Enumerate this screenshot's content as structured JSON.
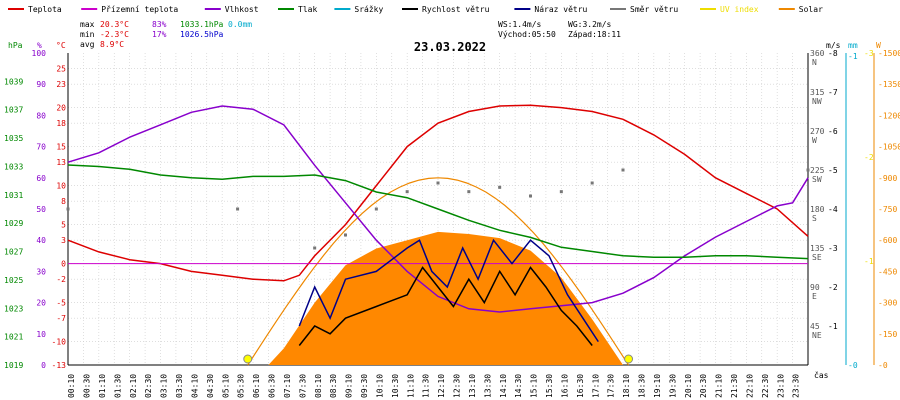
{
  "legend": [
    {
      "label": "Teplota",
      "color": "#dd0000"
    },
    {
      "label": "Přízemní teplota",
      "color": "#cc00cc"
    },
    {
      "label": "Vlhkost",
      "color": "#8800cc"
    },
    {
      "label": "Tlak",
      "color": "#008800"
    },
    {
      "label": "Srážky",
      "color": "#00aacc"
    },
    {
      "label": "Rychlost větru",
      "color": "#000000"
    },
    {
      "label": "Náraz větru",
      "color": "#000088"
    },
    {
      "label": "Směr větru",
      "color": "#777777"
    },
    {
      "label": "UV index",
      "color": "#eedd00"
    },
    {
      "label": "Solar",
      "color": "#ee8800"
    }
  ],
  "stats": {
    "max_label": "max",
    "max_temp": "20.3°C",
    "max_hum": "83%",
    "max_press": "1033.1hPa",
    "max_rain": "0.0mm",
    "min_label": "min",
    "min_temp": "-2.3°C",
    "min_hum": "17%",
    "min_press": "1026.5hPa",
    "avg_label": "avg",
    "avg_temp": "8.9°C",
    "ws": "WS:1.4m/s",
    "wg": "WG:3.2m/s",
    "sunrise": "Východ:05:50",
    "sunset": "Západ:18:11"
  },
  "date": "23.03.2022",
  "x_axis_label": "čas",
  "chart_data": {
    "type": "line",
    "title": "23.03.2022",
    "x_ticks": [
      "00:10",
      "00:30",
      "01:10",
      "01:30",
      "02:10",
      "02:30",
      "03:10",
      "03:30",
      "04:10",
      "04:30",
      "05:10",
      "05:30",
      "06:10",
      "06:30",
      "07:10",
      "07:30",
      "08:10",
      "08:30",
      "09:10",
      "09:30",
      "10:10",
      "10:30",
      "11:10",
      "11:30",
      "12:10",
      "12:30",
      "13:10",
      "13:30",
      "14:10",
      "14:30",
      "15:10",
      "15:30",
      "16:10",
      "16:30",
      "17:10",
      "17:30",
      "18:10",
      "18:30",
      "19:10",
      "19:30",
      "20:10",
      "20:30",
      "21:10",
      "21:30",
      "22:10",
      "22:30",
      "23:10",
      "23:30"
    ],
    "axes": {
      "pressure": {
        "unit": "hPa",
        "range": [
          1019,
          1041
        ],
        "ticks": [
          1019,
          1021,
          1023,
          1025,
          1027,
          1029,
          1031,
          1033,
          1035,
          1037,
          1039
        ]
      },
      "humidity": {
        "unit": "%",
        "range": [
          0,
          100
        ],
        "ticks": [
          0,
          10,
          20,
          30,
          40,
          50,
          60,
          70,
          80,
          90,
          100
        ]
      },
      "temperature": {
        "unit": "°C",
        "range": [
          -13,
          27
        ],
        "ticks": [
          -13,
          -10,
          -7,
          -5,
          -2,
          0,
          3,
          5,
          8,
          10,
          13,
          15,
          18,
          20,
          23,
          25
        ]
      },
      "wind_dir": {
        "unit": "°",
        "ticks": [
          {
            "v": "45",
            "d": "NE"
          },
          {
            "v": "90",
            "d": "E"
          },
          {
            "v": "135",
            "d": "SE"
          },
          {
            "v": "180",
            "d": "S"
          },
          {
            "v": "225",
            "d": "SW"
          },
          {
            "v": "270",
            "d": "W"
          },
          {
            "v": "315",
            "d": "NW"
          },
          {
            "v": "360",
            "d": "N"
          }
        ]
      },
      "wind_speed": {
        "unit": "m/s",
        "range": [
          0,
          8
        ],
        "ticks": [
          0,
          1,
          2,
          3,
          4,
          5,
          6,
          7,
          8
        ]
      },
      "rain": {
        "unit": "mm",
        "ticks": [
          0,
          1
        ]
      },
      "uv": {
        "range": [
          0,
          3
        ],
        "ticks": [
          0,
          1,
          2,
          3
        ]
      },
      "solar": {
        "unit": "W",
        "range": [
          0,
          1500
        ],
        "ticks": [
          0,
          150,
          300,
          450,
          600,
          750,
          900,
          1050,
          1200,
          1350,
          1500
        ]
      }
    },
    "series": [
      {
        "name": "Teplota",
        "axis": "temperature",
        "color": "#dd0000",
        "points": [
          [
            0,
            3
          ],
          [
            1,
            1.5
          ],
          [
            2,
            0.5
          ],
          [
            3,
            0
          ],
          [
            4,
            -1
          ],
          [
            5,
            -1.5
          ],
          [
            6,
            -2
          ],
          [
            7,
            -2.2
          ],
          [
            7.5,
            -1.5
          ],
          [
            8,
            1
          ],
          [
            9,
            5
          ],
          [
            10,
            10
          ],
          [
            11,
            15
          ],
          [
            12,
            18
          ],
          [
            13,
            19.5
          ],
          [
            14,
            20.2
          ],
          [
            15,
            20.3
          ],
          [
            16,
            20
          ],
          [
            17,
            19.5
          ],
          [
            18,
            18.5
          ],
          [
            19,
            16.5
          ],
          [
            20,
            14
          ],
          [
            21,
            11
          ],
          [
            22,
            9
          ],
          [
            23,
            7
          ],
          [
            24,
            3.5
          ]
        ]
      },
      {
        "name": "Přízemní teplota",
        "axis": "temperature",
        "color": "#cc00cc",
        "points": [
          [
            0,
            0
          ],
          [
            24,
            0
          ]
        ]
      },
      {
        "name": "Vlhkost",
        "axis": "humidity",
        "color": "#8800cc",
        "points": [
          [
            0,
            65
          ],
          [
            1,
            68
          ],
          [
            2,
            73
          ],
          [
            3,
            77
          ],
          [
            4,
            81
          ],
          [
            5,
            83
          ],
          [
            6,
            82
          ],
          [
            7,
            77
          ],
          [
            8,
            64
          ],
          [
            9,
            52
          ],
          [
            10,
            40
          ],
          [
            11,
            30
          ],
          [
            12,
            22
          ],
          [
            13,
            18
          ],
          [
            14,
            17
          ],
          [
            15,
            18
          ],
          [
            16,
            19
          ],
          [
            17,
            20
          ],
          [
            18,
            23
          ],
          [
            19,
            28
          ],
          [
            20,
            35
          ],
          [
            21,
            41
          ],
          [
            22,
            46
          ],
          [
            23,
            51
          ],
          [
            23.5,
            52
          ],
          [
            24,
            60
          ]
        ]
      },
      {
        "name": "Tlak",
        "axis": "pressure",
        "color": "#008800",
        "points": [
          [
            0,
            1033.1
          ],
          [
            1,
            1033
          ],
          [
            2,
            1032.8
          ],
          [
            3,
            1032.4
          ],
          [
            4,
            1032.2
          ],
          [
            5,
            1032.1
          ],
          [
            6,
            1032.3
          ],
          [
            7,
            1032.3
          ],
          [
            8,
            1032.4
          ],
          [
            9,
            1032
          ],
          [
            10,
            1031.2
          ],
          [
            11,
            1030.8
          ],
          [
            12,
            1030
          ],
          [
            13,
            1029.2
          ],
          [
            14,
            1028.5
          ],
          [
            15,
            1028
          ],
          [
            16,
            1027.3
          ],
          [
            17,
            1027
          ],
          [
            18,
            1026.7
          ],
          [
            19,
            1026.6
          ],
          [
            20,
            1026.6
          ],
          [
            21,
            1026.7
          ],
          [
            22,
            1026.7
          ],
          [
            23,
            1026.6
          ],
          [
            24,
            1026.5
          ]
        ]
      },
      {
        "name": "Rychlost větru",
        "axis": "wind_speed",
        "color": "#000000",
        "points": [
          [
            7.5,
            0.5
          ],
          [
            8,
            1
          ],
          [
            8.5,
            0.8
          ],
          [
            9,
            1.2
          ],
          [
            10,
            1.5
          ],
          [
            11,
            1.8
          ],
          [
            11.5,
            2.5
          ],
          [
            12,
            2
          ],
          [
            12.5,
            1.5
          ],
          [
            13,
            2.2
          ],
          [
            13.5,
            1.6
          ],
          [
            14,
            2.4
          ],
          [
            14.5,
            1.8
          ],
          [
            15,
            2.5
          ],
          [
            15.5,
            2
          ],
          [
            16,
            1.4
          ],
          [
            16.5,
            1
          ],
          [
            17,
            0.5
          ]
        ]
      },
      {
        "name": "Náraz větru",
        "axis": "wind_speed",
        "color": "#000088",
        "points": [
          [
            7.5,
            1
          ],
          [
            8,
            2
          ],
          [
            8.5,
            1.2
          ],
          [
            9,
            2.2
          ],
          [
            10,
            2.4
          ],
          [
            11,
            3
          ],
          [
            11.4,
            3.2
          ],
          [
            11.8,
            2.4
          ],
          [
            12.3,
            2
          ],
          [
            12.8,
            3
          ],
          [
            13.3,
            2.2
          ],
          [
            13.8,
            3.2
          ],
          [
            14.4,
            2.6
          ],
          [
            15,
            3.2
          ],
          [
            15.6,
            2.8
          ],
          [
            16.2,
            1.8
          ],
          [
            16.7,
            1.2
          ],
          [
            17.2,
            0.6
          ]
        ]
      },
      {
        "name": "Solar",
        "axis": "solar",
        "color": "#ee8800",
        "fill": true,
        "points": [
          [
            6.5,
            0
          ],
          [
            7,
            80
          ],
          [
            8,
            300
          ],
          [
            9,
            480
          ],
          [
            10,
            560
          ],
          [
            11,
            600
          ],
          [
            12,
            640
          ],
          [
            13,
            630
          ],
          [
            14,
            610
          ],
          [
            15,
            550
          ],
          [
            16,
            420
          ],
          [
            17,
            220
          ],
          [
            18,
            0
          ]
        ]
      }
    ],
    "wind_direction_samples": [
      [
        0,
        180
      ],
      [
        5.5,
        180
      ],
      [
        8,
        135
      ],
      [
        9,
        150
      ],
      [
        10,
        180
      ],
      [
        11,
        200
      ],
      [
        12,
        210
      ],
      [
        13,
        200
      ],
      [
        14,
        205
      ],
      [
        15,
        195
      ],
      [
        16,
        200
      ],
      [
        17,
        210
      ],
      [
        18,
        225
      ],
      [
        24,
        225
      ]
    ],
    "sun_markers": [
      {
        "label": "Východ",
        "time": 5.83
      },
      {
        "label": "Západ",
        "time": 18.18
      }
    ]
  }
}
